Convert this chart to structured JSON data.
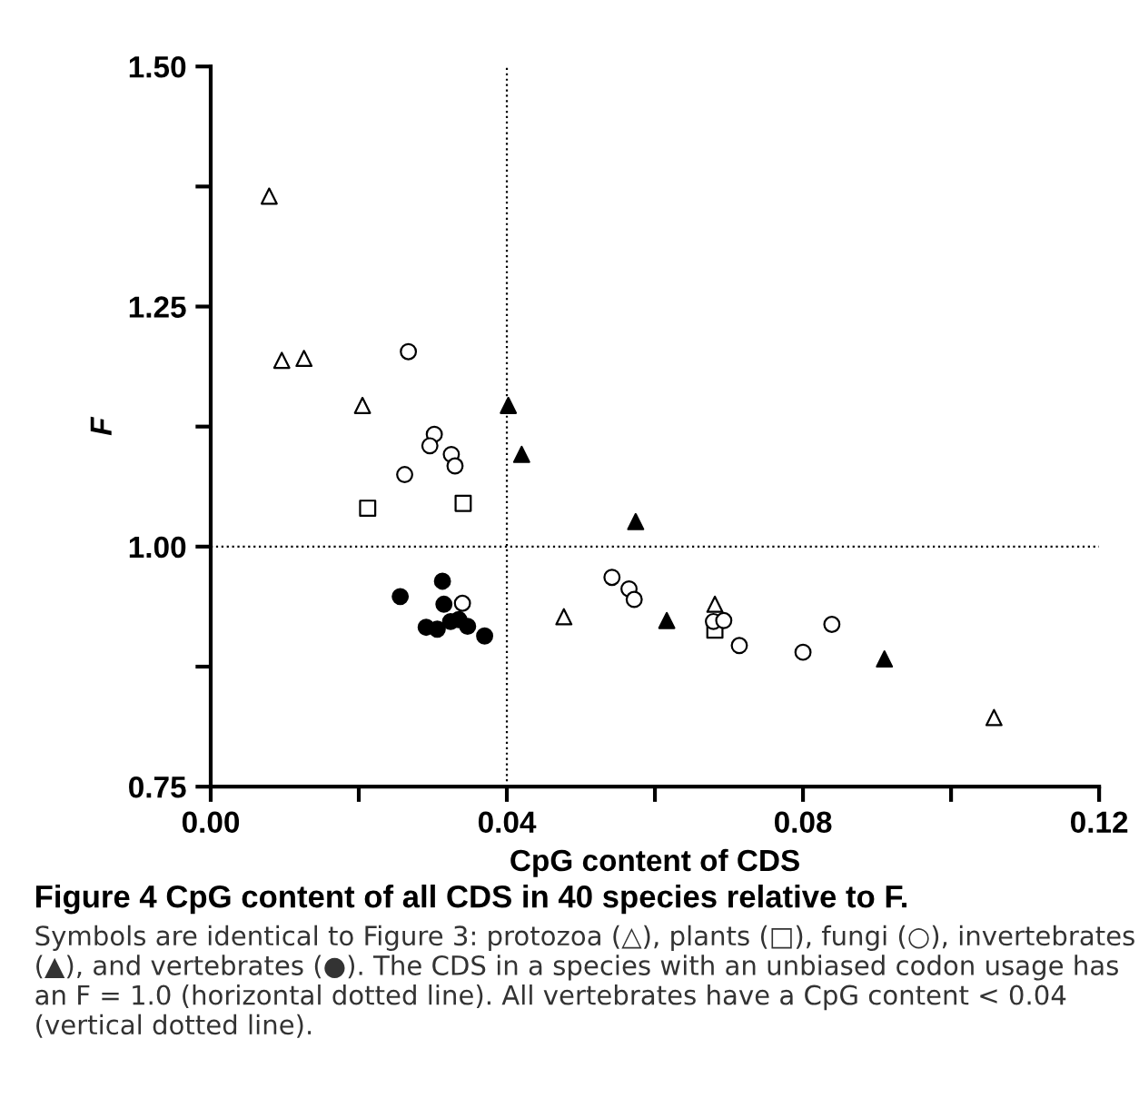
{
  "chart_data": {
    "type": "scatter",
    "title": "Figure 4 CpG content of all CDS in 40 species relative to F.",
    "xlabel": "CpG content of CDS",
    "ylabel": "F",
    "annotations": [
      "Symbols are identical to Figure 3: protozoa (△), plants (□), fungi (○), invertebrates (▲), and vertebrates (●). The CDS in a species with an unbiased codon usage has an F = 1.0 (horizontal dotted line). All vertebrates have a CpG content < 0.04 (vertical dotted line)."
    ],
    "series": [
      {
        "color": "#ffffff",
        "marker": "triangle",
        "x": [
          0.0079,
          0.0096,
          0.0126,
          0.0205,
          0.0477,
          0.0681,
          0.1058
        ],
        "values": [
          1.365,
          1.194,
          1.196,
          1.147,
          0.927,
          0.94,
          0.822
        ]
      },
      {
        "color": "#ffffff",
        "marker": "square",
        "x": [
          0.0212,
          0.0341,
          0.0681
        ],
        "values": [
          1.04,
          1.045,
          0.913
        ]
      },
      {
        "color": "#ffffff",
        "marker": "circle",
        "x": [
          0.0267,
          0.0302,
          0.0296,
          0.0325,
          0.033,
          0.0262,
          0.034,
          0.0542,
          0.0565,
          0.0572,
          0.0679,
          0.0693,
          0.0714,
          0.08,
          0.0839
        ],
        "values": [
          1.203,
          1.117,
          1.105,
          1.096,
          1.084,
          1.075,
          0.941,
          0.968,
          0.956,
          0.945,
          0.922,
          0.923,
          0.897,
          0.89,
          0.919
        ]
      },
      {
        "color": "#000000",
        "marker": "triangle",
        "x": [
          0.0402,
          0.042,
          0.0574,
          0.0616,
          0.091
        ],
        "values": [
          1.147,
          1.096,
          1.026,
          0.923,
          0.883
        ]
      },
      {
        "color": "#000000",
        "marker": "circle",
        "x": [
          0.0256,
          0.0313,
          0.0315,
          0.0291,
          0.0306,
          0.0324,
          0.0335,
          0.0347,
          0.037
        ],
        "values": [
          0.948,
          0.964,
          0.94,
          0.916,
          0.914,
          0.922,
          0.924,
          0.917,
          0.907
        ]
      }
    ],
    "xlim": [
      0,
      0.12
    ],
    "xticks": [
      {
        "value": 0,
        "label": "0.00"
      },
      {
        "value": 0.02,
        "label": null
      },
      {
        "value": 0.04,
        "label": "0.04"
      },
      {
        "value": 0.06,
        "label": null
      },
      {
        "value": 0.08,
        "label": "0.08"
      },
      {
        "value": 0.1,
        "label": null
      },
      {
        "value": 0.12,
        "label": "0.12"
      }
    ],
    "ylim": [
      0.75,
      1.5
    ],
    "yticks": [
      {
        "value": 0.75,
        "label": "0.75"
      },
      {
        "value": 0.875,
        "label": null
      },
      {
        "value": 1.0,
        "label": "1.00"
      },
      {
        "value": 1.125,
        "label": null
      },
      {
        "value": 1.25,
        "label": "1.25"
      },
      {
        "value": 1.375,
        "label": null
      },
      {
        "value": 1.5,
        "label": "1.50"
      }
    ],
    "ref_lines": [
      {
        "axis": "y",
        "value": 1.0,
        "line_style": "dotted",
        "color": "#000000"
      },
      {
        "axis": "x",
        "value": 0.04,
        "line_style": "dotted",
        "color": "#000000"
      }
    ],
    "grid": false
  }
}
